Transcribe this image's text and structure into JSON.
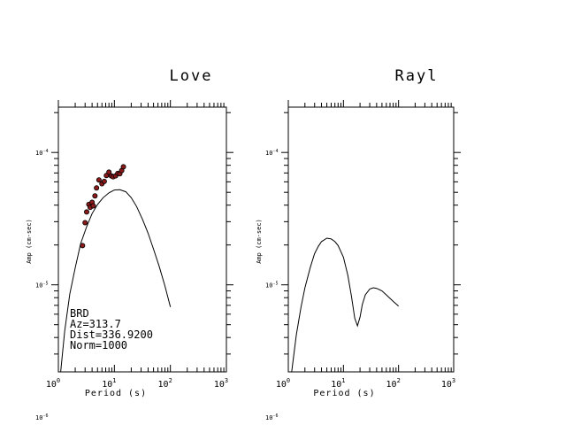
{
  "chart_data": [
    {
      "type": "line",
      "title": "Love",
      "xlabel": "Period (s)",
      "ylabel": "Amp (cm-sec)",
      "xscale": "log",
      "yscale": "log",
      "xlim": [
        1,
        1000
      ],
      "ylim": [
        2.2e-06,
        0.00022
      ],
      "xtick_labels": [
        {
          "base": "10",
          "exp": "0"
        },
        {
          "base": "10",
          "exp": "1"
        },
        {
          "base": "10",
          "exp": "2"
        },
        {
          "base": "10",
          "exp": "3"
        }
      ],
      "ytick_labels": [
        {
          "base": "10",
          "exp": "-4"
        },
        {
          "base": "10",
          "exp": "-5"
        },
        {
          "base": "10",
          "exp": "-6"
        }
      ],
      "annotations": [
        "BRD",
        "Az=313.7",
        "Dist=336.9200",
        "Norm=1000"
      ],
      "curve": {
        "x": [
          1.1,
          1.3,
          1.6,
          2.0,
          2.5,
          3.2,
          4.0,
          5.0,
          6.3,
          8.0,
          10,
          12.5,
          16,
          20,
          25,
          32,
          40,
          50,
          63,
          80,
          100
        ],
        "y": [
          2.2e-06,
          4.5e-06,
          8.5e-06,
          1.35e-05,
          2.05e-05,
          2.75e-05,
          3.45e-05,
          4.05e-05,
          4.55e-05,
          4.95e-05,
          5.2e-05,
          5.23e-05,
          5.05e-05,
          4.55e-05,
          3.9e-05,
          3.1e-05,
          2.45e-05,
          1.86e-05,
          1.38e-05,
          9.8e-06,
          6.8e-06
        ]
      },
      "points": {
        "x": [
          2.7,
          3.0,
          3.2,
          3.5,
          3.7,
          4.0,
          4.2,
          4.5,
          4.8,
          5.3,
          6.0,
          6.6,
          7.2,
          8.0,
          8.8,
          9.5,
          10.5,
          11.5,
          12.5,
          13.5,
          14.5
        ],
        "y": [
          1.98e-05,
          2.95e-05,
          3.55e-05,
          4.05e-05,
          3.85e-05,
          4.2e-05,
          3.95e-05,
          4.7e-05,
          5.4e-05,
          6.2e-05,
          5.8e-05,
          6.05e-05,
          6.7e-05,
          7.1e-05,
          6.65e-05,
          6.55e-05,
          6.65e-05,
          6.95e-05,
          6.9e-05,
          7.3e-05,
          7.8e-05
        ]
      }
    },
    {
      "type": "line",
      "title": "Rayl",
      "xlabel": "Period (s)",
      "ylabel": "Amp (cm-sec)",
      "xscale": "log",
      "yscale": "log",
      "xlim": [
        1,
        1000
      ],
      "ylim": [
        2.2e-06,
        0.00022
      ],
      "xtick_labels": [
        {
          "base": "10",
          "exp": "0"
        },
        {
          "base": "10",
          "exp": "1"
        },
        {
          "base": "10",
          "exp": "2"
        },
        {
          "base": "10",
          "exp": "3"
        }
      ],
      "ytick_labels": [
        {
          "base": "10",
          "exp": "-4"
        },
        {
          "base": "10",
          "exp": "-5"
        },
        {
          "base": "10",
          "exp": "-6"
        }
      ],
      "annotations": [],
      "curve": {
        "x": [
          1.15,
          1.4,
          1.7,
          2.0,
          2.5,
          3.0,
          3.5,
          4.0,
          5.0,
          6.0,
          7.0,
          8.0,
          10,
          12,
          14,
          16,
          18,
          20,
          22,
          25,
          30,
          35,
          40,
          50,
          60,
          70,
          80,
          100
        ],
        "y": [
          2.2e-06,
          4.2e-06,
          6.8e-06,
          9.5e-06,
          1.35e-05,
          1.72e-05,
          1.95e-05,
          2.12e-05,
          2.25e-05,
          2.22e-05,
          2.12e-05,
          1.98e-05,
          1.62e-05,
          1.18e-05,
          8.2e-06,
          5.6e-06,
          4.9e-06,
          5.7e-06,
          7.1e-06,
          8.4e-06,
          9.3e-06,
          9.5e-06,
          9.4e-06,
          9e-06,
          8.4e-06,
          7.9e-06,
          7.5e-06,
          6.9e-06
        ]
      }
    }
  ]
}
